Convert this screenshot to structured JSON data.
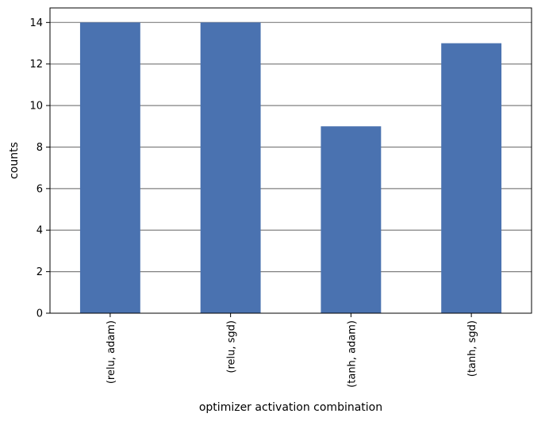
{
  "chart_data": {
    "type": "bar",
    "title": "",
    "xlabel": "optimizer activation combination",
    "ylabel": "counts",
    "categories": [
      "(relu, adam)",
      "(relu, sgd)",
      "(tanh, adam)",
      "(tanh, sgd)"
    ],
    "values": [
      14,
      14,
      9,
      13
    ],
    "ylim": [
      0,
      14.7
    ],
    "yticks": [
      0,
      2,
      4,
      6,
      8,
      10,
      12,
      14
    ],
    "grid": "y",
    "legend": "none",
    "bar_color": "#4a72b0",
    "grid_color": "#808080"
  }
}
